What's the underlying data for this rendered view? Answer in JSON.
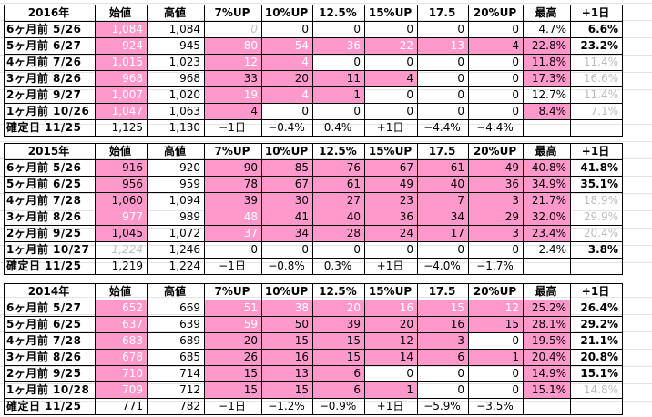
{
  "columns": [
    "始値",
    "高値",
    "7%UP",
    "10%UP",
    "12.5%",
    "15%UP",
    "17.5",
    "20%UP",
    "最高",
    "+1日"
  ],
  "tables": [
    {
      "year": "2016年",
      "rows": [
        {
          "label": "6ヶ月前  5/26",
          "cells": [
            "1,084",
            "1,084",
            "0",
            "0",
            "0",
            "0",
            "0",
            "0",
            "4.7%",
            "6.6%"
          ]
        },
        {
          "label": "5ヶ月前  6/27",
          "cells": [
            "924",
            "945",
            "80",
            "54",
            "36",
            "22",
            "13",
            "4",
            "22.8%",
            "23.2%"
          ]
        },
        {
          "label": "4ヶ月前  7/26",
          "cells": [
            "1,015",
            "1,023",
            "12",
            "4",
            "0",
            "0",
            "0",
            "0",
            "11.8%",
            "11.4%"
          ]
        },
        {
          "label": "3ヶ月前  8/26",
          "cells": [
            "968",
            "968",
            "33",
            "20",
            "11",
            "4",
            "0",
            "0",
            "17.3%",
            "16.6%"
          ]
        },
        {
          "label": "2ヶ月前  9/27",
          "cells": [
            "1,007",
            "1,020",
            "19",
            "4",
            "1",
            "0",
            "0",
            "0",
            "12.7%",
            "11.4%"
          ]
        },
        {
          "label": "1ヶ月前 10/26",
          "cells": [
            "1,047",
            "1,063",
            "4",
            "0",
            "0",
            "0",
            "0",
            "0",
            "8.4%",
            "7.1%"
          ]
        },
        {
          "label": "確定日  11/25",
          "cells": [
            "1,125",
            "1,130",
            "−1日",
            "−0.4%",
            "0.4%",
            "+1日",
            "−4.4%",
            "−4.4%",
            "",
            ""
          ]
        }
      ]
    },
    {
      "year": "2015年",
      "rows": [
        {
          "label": "6ヶ月前  5/26",
          "cells": [
            "916",
            "920",
            "90",
            "85",
            "76",
            "67",
            "61",
            "49",
            "40.8%",
            "41.8%"
          ]
        },
        {
          "label": "5ヶ月前  6/25",
          "cells": [
            "956",
            "959",
            "78",
            "67",
            "61",
            "49",
            "40",
            "36",
            "34.9%",
            "35.1%"
          ]
        },
        {
          "label": "4ヶ月前  7/28",
          "cells": [
            "1,060",
            "1,094",
            "39",
            "30",
            "27",
            "23",
            "7",
            "3",
            "21.7%",
            "18.9%"
          ]
        },
        {
          "label": "3ヶ月前  8/26",
          "cells": [
            "977",
            "989",
            "48",
            "41",
            "40",
            "36",
            "34",
            "29",
            "32.0%",
            "29.9%"
          ]
        },
        {
          "label": "2ヶ月前  9/25",
          "cells": [
            "1,045",
            "1,072",
            "37",
            "34",
            "28",
            "24",
            "17",
            "3",
            "23.4%",
            "20.4%"
          ]
        },
        {
          "label": "1ヶ月前 10/27",
          "cells": [
            "1,224",
            "1,246",
            "0",
            "0",
            "0",
            "0",
            "0",
            "0",
            "2.4%",
            "3.8%"
          ]
        },
        {
          "label": "確定日  11/25",
          "cells": [
            "1,219",
            "1,224",
            "−1日",
            "−0.8%",
            "0.3%",
            "+1日",
            "−4.0%",
            "−1.7%",
            "",
            ""
          ]
        }
      ]
    },
    {
      "year": "2014年",
      "rows": [
        {
          "label": "6ヶ月前  5/27",
          "cells": [
            "652",
            "669",
            "51",
            "38",
            "20",
            "16",
            "15",
            "12",
            "25.2%",
            "26.4%"
          ]
        },
        {
          "label": "5ヶ月前  6/25",
          "cells": [
            "637",
            "639",
            "59",
            "50",
            "39",
            "20",
            "16",
            "15",
            "28.1%",
            "29.2%"
          ]
        },
        {
          "label": "4ヶ月前  7/28",
          "cells": [
            "683",
            "689",
            "20",
            "15",
            "15",
            "12",
            "3",
            "0",
            "19.5%",
            "21.1%"
          ]
        },
        {
          "label": "3ヶ月前  8/26",
          "cells": [
            "678",
            "685",
            "26",
            "16",
            "15",
            "14",
            "6",
            "1",
            "20.4%",
            "20.8%"
          ]
        },
        {
          "label": "2ヶ月前  9/25",
          "cells": [
            "710",
            "714",
            "15",
            "13",
            "6",
            "0",
            "0",
            "0",
            "14.9%",
            "15.1%"
          ]
        },
        {
          "label": "1ヶ月前 10/28",
          "cells": [
            "709",
            "712",
            "15",
            "15",
            "6",
            "1",
            "0",
            "0",
            "15.1%",
            "14.8%"
          ]
        },
        {
          "label": "確定日  11/25",
          "cells": [
            "771",
            "782",
            "−1日",
            "−1.2%",
            "−0.9%",
            "+1日",
            "−5.9%",
            "−3.5%",
            "",
            ""
          ]
        }
      ]
    }
  ],
  "colors": {
    "highlight": "#ff99cc",
    "gridline": "#e3e3e3",
    "muted_text": "#bdbdbd"
  }
}
